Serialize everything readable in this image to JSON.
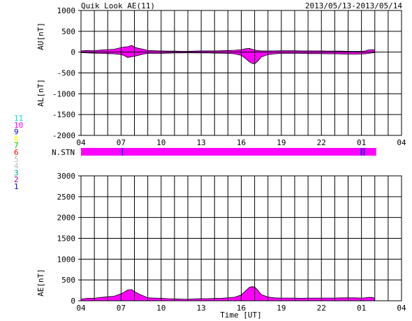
{
  "header": {
    "title": "Quik Look AE(11)",
    "date_range": "2013/05/13-2013/05/14"
  },
  "station_legend": {
    "numbers": [
      "11",
      "10",
      "9",
      "8",
      "7",
      "6",
      "5",
      "4",
      "3",
      "2",
      "1"
    ],
    "colors": [
      "#00e0e0",
      "#ff00ff",
      "#0000ff",
      "#ffff00",
      "#00cc00",
      "#ff0000",
      "#bbbbbb",
      "#bbbbbb",
      "#00a0a0",
      "#a000a0",
      "#0000cc"
    ]
  },
  "colors": {
    "fill": "#ff00ff",
    "line": "#000000",
    "grid": "#000000",
    "station_marker": "#2020c0"
  },
  "chart_data": [
    {
      "type": "area",
      "ylabel_top": "AU[nT]",
      "ylabel_bottom": "AL[nT]",
      "yticks": [
        "1000",
        "500",
        "0",
        "-500",
        "-1000",
        "-1500",
        "-2000"
      ],
      "ylim": [
        -2000,
        1000
      ],
      "xticks": [
        "04",
        "07",
        "10",
        "13",
        "16",
        "19",
        "22",
        "01",
        "04"
      ],
      "xlim_hours": [
        4,
        28
      ],
      "grid": true,
      "series": [
        {
          "x": [
            4.0,
            4.5,
            5.0,
            5.5,
            6.0,
            6.5,
            7.0,
            7.2,
            7.5,
            7.8,
            8.0,
            8.3,
            8.5,
            8.8,
            9.0,
            9.5,
            10.0,
            10.5,
            11.0,
            11.5,
            12.0,
            12.5,
            13.0,
            13.5,
            14.0,
            14.5,
            15.0,
            15.5,
            16.0,
            16.3,
            16.6,
            16.8,
            17.0,
            17.2,
            17.5,
            18.0,
            18.5,
            19.0,
            19.5,
            20.0,
            20.5,
            21.0,
            21.5,
            22.0,
            22.5,
            23.0,
            23.5,
            24.0,
            24.5,
            25.0,
            25.3,
            25.5,
            25.8,
            26.0
          ],
          "values": [
            30,
            40,
            35,
            50,
            60,
            70,
            110,
            120,
            130,
            160,
            120,
            90,
            80,
            60,
            40,
            35,
            30,
            25,
            25,
            20,
            20,
            25,
            30,
            30,
            30,
            35,
            40,
            45,
            60,
            80,
            90,
            70,
            50,
            40,
            30,
            30,
            30,
            35,
            35,
            35,
            30,
            30,
            30,
            30,
            25,
            25,
            25,
            20,
            20,
            20,
            30,
            50,
            60,
            50
          ]
        },
        {
          "x": [
            4.0,
            4.5,
            5.0,
            5.5,
            6.0,
            6.5,
            7.0,
            7.2,
            7.5,
            7.8,
            8.0,
            8.3,
            8.5,
            8.8,
            9.0,
            9.5,
            10.0,
            10.5,
            11.0,
            11.5,
            12.0,
            12.5,
            13.0,
            13.5,
            14.0,
            14.5,
            15.0,
            15.5,
            16.0,
            16.3,
            16.6,
            16.8,
            17.0,
            17.2,
            17.5,
            18.0,
            18.5,
            19.0,
            19.5,
            20.0,
            20.5,
            21.0,
            21.5,
            22.0,
            22.5,
            23.0,
            23.5,
            24.0,
            24.5,
            25.0,
            25.3,
            25.5,
            25.8,
            26.0
          ],
          "values": [
            -10,
            -20,
            -25,
            -30,
            -35,
            -40,
            -60,
            -80,
            -130,
            -110,
            -100,
            -80,
            -60,
            -40,
            -30,
            -30,
            -30,
            -25,
            -20,
            -20,
            -15,
            -20,
            -20,
            -20,
            -25,
            -25,
            -30,
            -40,
            -80,
            -150,
            -230,
            -270,
            -280,
            -230,
            -120,
            -60,
            -40,
            -30,
            -30,
            -30,
            -30,
            -35,
            -35,
            -35,
            -40,
            -40,
            -45,
            -50,
            -50,
            -45,
            -40,
            -30,
            -20,
            -10
          ]
        }
      ]
    },
    {
      "type": "area",
      "ylabel": "AE[nT]",
      "yticks": [
        "3000",
        "2500",
        "2000",
        "1500",
        "1000",
        "500",
        "0"
      ],
      "ylim": [
        0,
        3000
      ],
      "xticks": [
        "04",
        "07",
        "10",
        "13",
        "16",
        "19",
        "22",
        "01",
        "04"
      ],
      "xlabel": "Time [UT]",
      "xlim_hours": [
        4,
        28
      ],
      "grid": true,
      "series": [
        {
          "x": [
            4.0,
            4.5,
            5.0,
            5.5,
            6.0,
            6.5,
            7.0,
            7.2,
            7.5,
            7.8,
            8.0,
            8.3,
            8.5,
            8.8,
            9.0,
            9.5,
            10.0,
            10.5,
            11.0,
            11.5,
            12.0,
            12.5,
            13.0,
            13.5,
            14.0,
            14.5,
            15.0,
            15.5,
            16.0,
            16.3,
            16.6,
            16.8,
            17.0,
            17.2,
            17.5,
            18.0,
            18.5,
            19.0,
            19.5,
            20.0,
            20.5,
            21.0,
            21.5,
            22.0,
            22.5,
            23.0,
            23.5,
            24.0,
            24.5,
            25.0,
            25.3,
            25.5,
            25.8,
            26.0
          ],
          "values": [
            40,
            60,
            60,
            80,
            95,
            110,
            170,
            200,
            260,
            270,
            220,
            170,
            140,
            100,
            70,
            65,
            60,
            50,
            45,
            40,
            35,
            45,
            50,
            50,
            55,
            60,
            70,
            85,
            140,
            230,
            320,
            340,
            330,
            270,
            150,
            90,
            70,
            65,
            65,
            65,
            60,
            65,
            65,
            65,
            65,
            65,
            70,
            70,
            70,
            65,
            70,
            80,
            80,
            60
          ]
        }
      ]
    }
  ],
  "station_bar": {
    "label": "N.STN",
    "start_hour": 4,
    "end_hour": 26.1,
    "markers_hours": [
      7.1,
      25.0,
      25.2
    ]
  }
}
